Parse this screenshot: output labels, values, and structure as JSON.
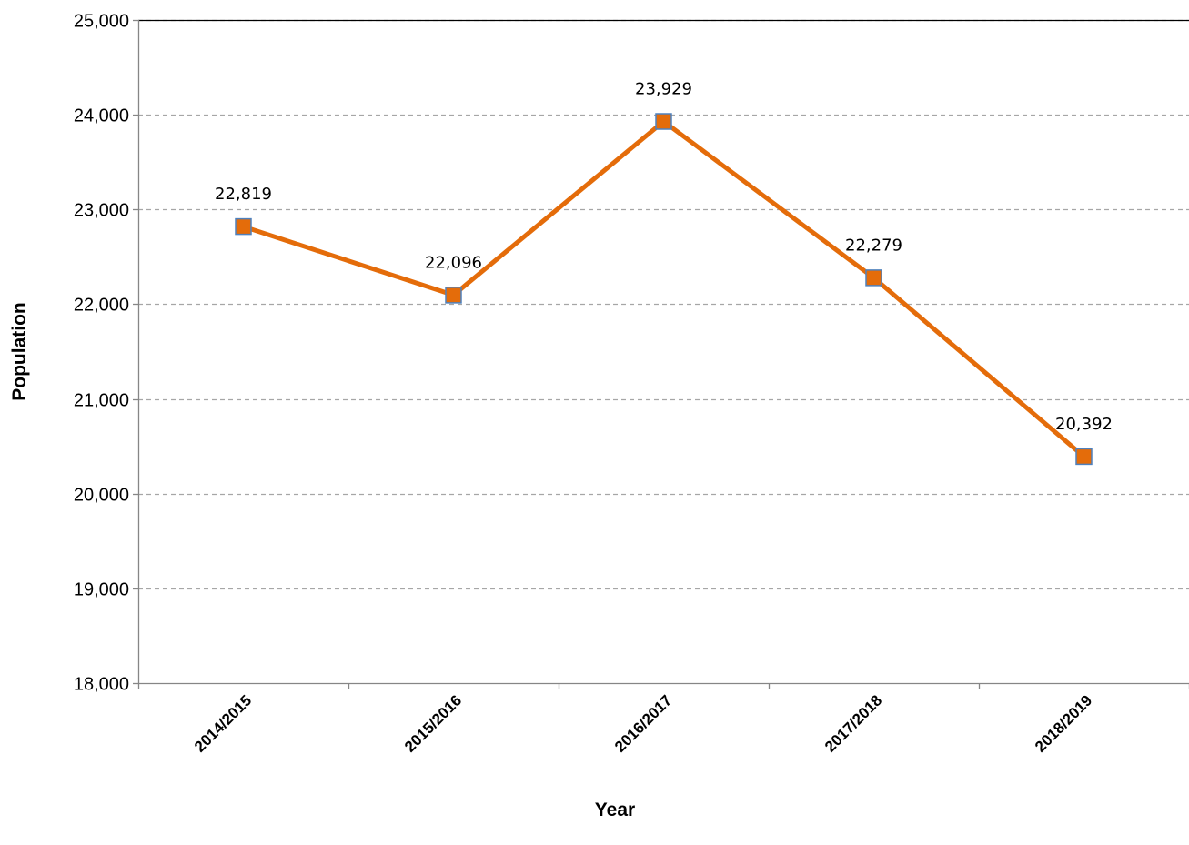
{
  "chart_data": {
    "type": "line",
    "categories": [
      "2014/2015",
      "2015/2016",
      "2016/2017",
      "2017/2018",
      "2018/2019"
    ],
    "series": [
      {
        "values": [
          22819,
          22096,
          23929,
          22279,
          20392
        ],
        "data_labels": [
          "22,819",
          "22,096",
          "23,929",
          "22,279",
          "20,392"
        ]
      }
    ],
    "y_ticks": [
      18000,
      19000,
      20000,
      21000,
      22000,
      23000,
      24000,
      25000
    ],
    "y_tick_labels": [
      "18,000",
      "19,000",
      "20,000",
      "21,000",
      "22,000",
      "23,000",
      "24,000",
      "25,000"
    ],
    "xlabel": "Year",
    "ylabel": "Population",
    "ylim": [
      18000,
      25000
    ],
    "grid": "horizontal-dashed",
    "legend": "none",
    "colors": {
      "line": "#E46C0A",
      "marker_fill": "#E46C0A",
      "marker_border": "#4F81BD",
      "grid": "#A6A6A6",
      "axis": "#868686"
    }
  }
}
